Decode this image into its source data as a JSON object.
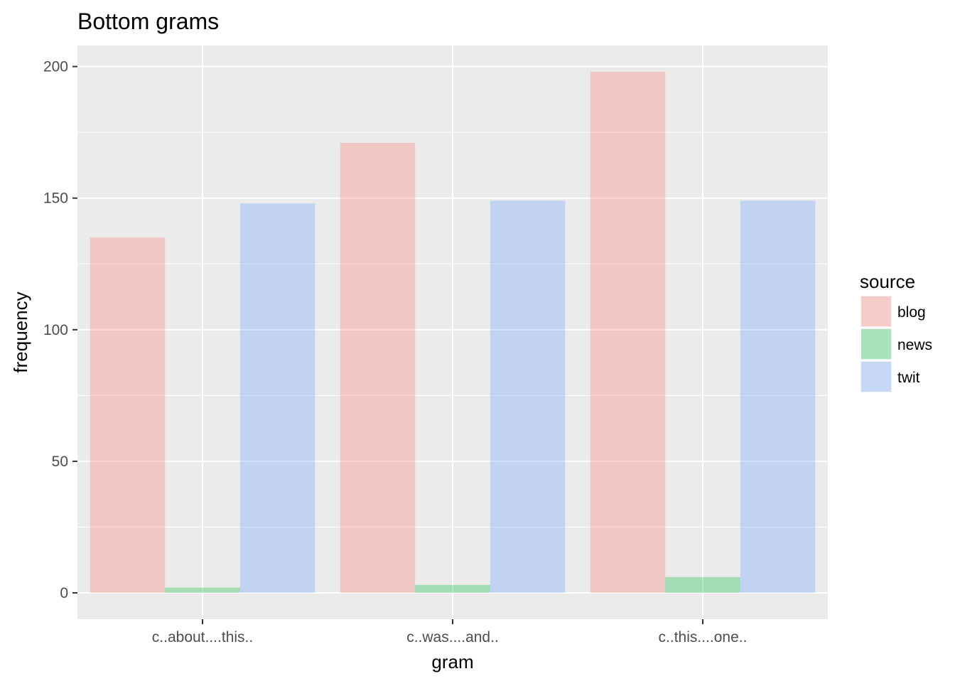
{
  "chart_data": {
    "type": "bar",
    "title": "Bottom grams",
    "xlabel": "gram",
    "ylabel": "frequency",
    "categories": [
      "c..about....this..",
      "c..was....and..",
      "c..this....one.."
    ],
    "series": [
      {
        "name": "blog",
        "values": [
          135,
          171,
          198
        ],
        "color": "#F8766D"
      },
      {
        "name": "news",
        "values": [
          2,
          3,
          6
        ],
        "color": "#00BA38"
      },
      {
        "name": "twit",
        "values": [
          148,
          149,
          149
        ],
        "color": "#619CFF"
      }
    ],
    "bar_opacity": 0.3,
    "ylim": [
      -10,
      208
    ],
    "yticks": [
      0,
      50,
      100,
      150,
      200
    ],
    "grid": true,
    "legend": {
      "title": "source",
      "position": "right"
    }
  }
}
